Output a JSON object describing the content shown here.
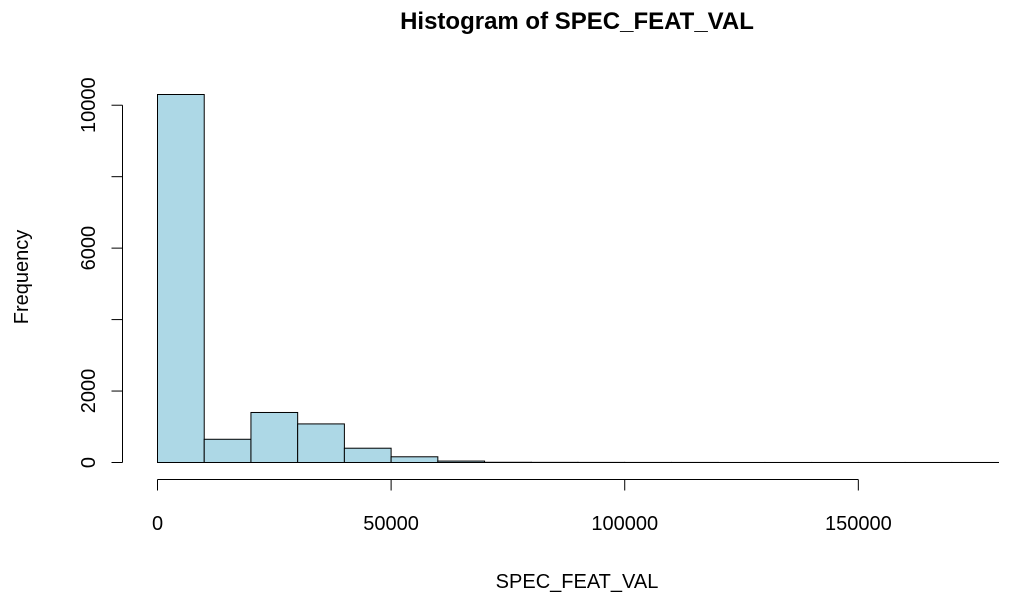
{
  "chart_data": {
    "type": "bar",
    "title": "Histogram of SPEC_FEAT_VAL",
    "xlabel": "SPEC_FEAT_VAL",
    "ylabel": "Frequency",
    "bin_width": 10000,
    "bins": [
      {
        "start": 0,
        "end": 10000,
        "count": 10300
      },
      {
        "start": 10000,
        "end": 20000,
        "count": 650
      },
      {
        "start": 20000,
        "end": 30000,
        "count": 1400
      },
      {
        "start": 30000,
        "end": 40000,
        "count": 1080
      },
      {
        "start": 40000,
        "end": 50000,
        "count": 400
      },
      {
        "start": 50000,
        "end": 60000,
        "count": 160
      },
      {
        "start": 60000,
        "end": 70000,
        "count": 40
      },
      {
        "start": 70000,
        "end": 80000,
        "count": 6
      },
      {
        "start": 80000,
        "end": 90000,
        "count": 4
      },
      {
        "start": 90000,
        "end": 100000,
        "count": 3
      },
      {
        "start": 100000,
        "end": 110000,
        "count": 2
      },
      {
        "start": 110000,
        "end": 120000,
        "count": 2
      },
      {
        "start": 120000,
        "end": 130000,
        "count": 1
      },
      {
        "start": 130000,
        "end": 140000,
        "count": 1
      },
      {
        "start": 140000,
        "end": 150000,
        "count": 1
      },
      {
        "start": 150000,
        "end": 160000,
        "count": 1
      },
      {
        "start": 160000,
        "end": 170000,
        "count": 1
      },
      {
        "start": 170000,
        "end": 180000,
        "count": 1
      }
    ],
    "xticks": [
      0,
      50000,
      100000,
      150000
    ],
    "xtick_labels": [
      "0",
      "50000",
      "100000",
      "150000"
    ],
    "yticks": [
      0,
      2000,
      4000,
      6000,
      8000,
      10000
    ],
    "ytick_labels": [
      "0",
      "2000",
      "",
      "6000",
      "",
      "10000"
    ],
    "xlim": [
      0,
      180000
    ],
    "ylim": [
      0,
      10300
    ],
    "bar_fill": "#add8e6",
    "bar_stroke": "#000000",
    "grid": false
  }
}
